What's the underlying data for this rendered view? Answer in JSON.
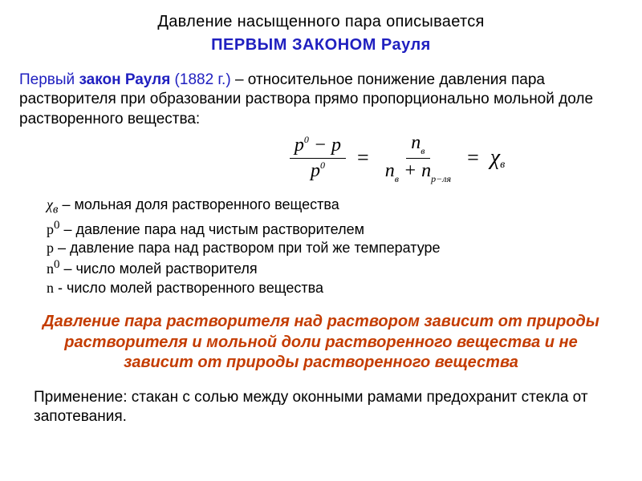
{
  "colors": {
    "text": "#000000",
    "accent_blue": "#2020c0",
    "accent_orange": "#c43c00",
    "background": "#ffffff"
  },
  "typography": {
    "body_font": "Arial",
    "formula_font": "Times New Roman",
    "body_size_pt": 19,
    "title_size_pt": 20,
    "defs_size_pt": 18,
    "emph_size_pt": 20
  },
  "title": {
    "line1": "Давление  насыщенного пара описывается",
    "line2": "ПЕРВЫМ ЗАКОНОМ  Рауля"
  },
  "law": {
    "prefix": "Первый ",
    "name_bold": "закон Рауля",
    "year": " (1882 г.) ",
    "dash": "–",
    "body": " относительное понижение давления пара растворителя при образовании раствора прямо пропорционально мольной доле растворенного вещества:"
  },
  "formula": {
    "lhs_num": "p⁰ − p",
    "frac1": {
      "num_a": "p",
      "num_sup": "0",
      "num_minus": " − ",
      "num_b": "p",
      "den_a": "p",
      "den_sup": "0"
    },
    "frac2": {
      "num": "n",
      "num_sub": "в",
      "den_a": "n",
      "den_a_sub": "в",
      "plus": " + ",
      "den_b": "n",
      "den_b_sub": "р−ля"
    },
    "chi": "χ",
    "chi_sub": "в",
    "eq": "="
  },
  "definitions": [
    {
      "sym_html": "χ<sub><i>в</i></sub>",
      "text": " – мольная доля растворенного вещества"
    },
    {
      "sym_html": "p<sup>0</sup>",
      "text": " – давление пара над чистым растворителем"
    },
    {
      "sym_html": "p",
      "text": " – давление пара над раствором при той же температуре"
    },
    {
      "sym_html": "n<sup>0</sup>",
      "text": " – число молей растворителя"
    },
    {
      "sym_html": "n",
      "text": " -  число молей растворенного вещества"
    }
  ],
  "emphasis": "Давление пара растворителя над раствором зависит от природы растворителя и мольной доли растворенного вещества и не зависит от природы растворенного вещества",
  "application": "Применение: стакан с солью между оконными рамами предохранит стекла от запотевания."
}
